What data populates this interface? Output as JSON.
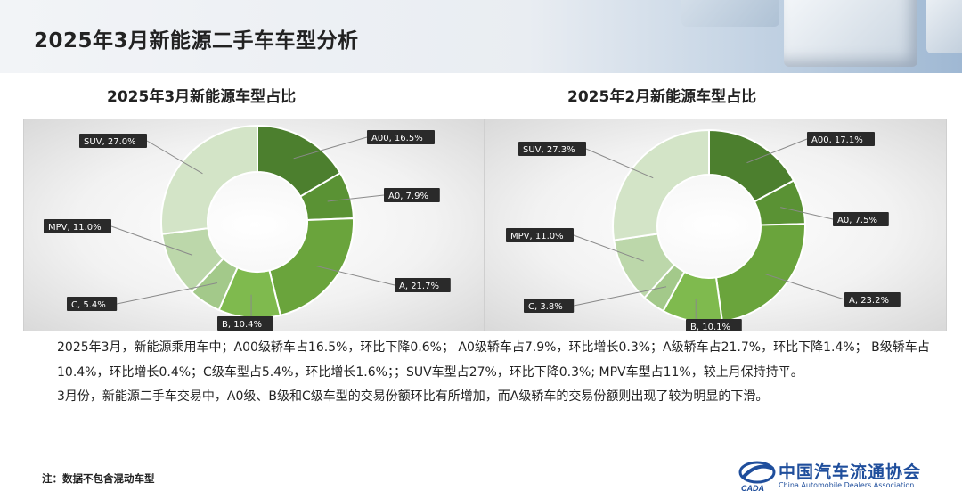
{
  "header": {
    "title": "2025年3月新能源二手车车型分析"
  },
  "chart_data": [
    {
      "type": "pie",
      "title": "2025年3月新能源车型占比",
      "categories": [
        "A00",
        "A0",
        "A",
        "B",
        "C",
        "MPV",
        "SUV"
      ],
      "values": [
        16.5,
        7.9,
        21.7,
        10.4,
        5.4,
        11.0,
        27.0
      ],
      "labels": [
        "A00, 16.5%",
        "A0, 7.9%",
        "A, 21.7%",
        "B, 10.4%",
        "C, 5.4%",
        "MPV, 11.0%",
        "SUV, 27.0%"
      ],
      "colors": [
        "#4c7f2e",
        "#5a9234",
        "#6aa43c",
        "#7fba4e",
        "#a3c98a",
        "#bcd7aa",
        "#d3e4c7"
      ]
    },
    {
      "type": "pie",
      "title": "2025年2月新能源车型占比",
      "categories": [
        "A00",
        "A0",
        "A",
        "B",
        "C",
        "MPV",
        "SUV"
      ],
      "values": [
        17.1,
        7.5,
        23.2,
        10.1,
        3.8,
        11.0,
        27.3
      ],
      "labels": [
        "A00, 17.1%",
        "A0, 7.5%",
        "A, 23.2%",
        "B, 10.1%",
        "C, 3.8%",
        "MPV, 11.0%",
        "SUV, 27.3%"
      ],
      "colors": [
        "#4c7f2e",
        "#5a9234",
        "#6aa43c",
        "#7fba4e",
        "#a3c98a",
        "#bcd7aa",
        "#d3e4c7"
      ]
    }
  ],
  "analysis": {
    "para1": "2025年3月，新能源乘用车中；A00级轿车占16.5%，环比下降0.6%； A0级轿车占7.9%，环比增长0.3%；A级轿车占21.7%，环比下降1.4%； B级轿车占10.4%，环比增长0.4%；C级车型占5.4%，环比增长1.6%；；SUV车型占27%，环比下降0.3%; MPV车型占11%，较上月保持持平。",
    "para2": "3月份，新能源二手车交易中，A0级、B级和C级车型的交易份额环比有所增加，而A级轿车的交易份额则出现了较为明显的下滑。"
  },
  "note": "注：数据不包含混动车型",
  "logo": {
    "name": "中国汽车流通协会",
    "en": "China Automobile Dealers Association",
    "mark": "CADA",
    "color": "#1f4e9c"
  }
}
